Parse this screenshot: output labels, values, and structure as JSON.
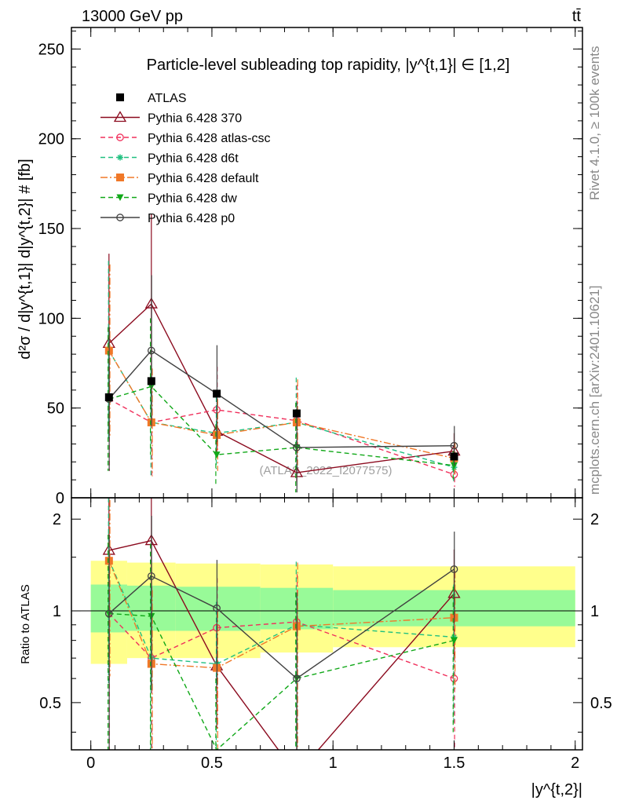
{
  "header": {
    "energy": "13000 GeV pp",
    "process": "tt̄"
  },
  "side_labels": {
    "rivet": "Rivet 4.1.0, ≥ 100k events",
    "source": "mcplots.cern.ch [arXiv:2401.10621]"
  },
  "watermark": "(ATLAS_2022_I2077575)",
  "chart_data": {
    "type": "line",
    "title": "Particle-level subleading top rapidity, |y^{t,1}| ∈ [1,2]",
    "xlabel": "|y^{t,2}|",
    "ylabel": "d²σ / d|y^{t,1}| d|y^{t,2}| # [fb]",
    "ratio_ylabel": "Ratio to ATLAS",
    "xlim": [
      -0.08,
      2.03
    ],
    "ylim": [
      0,
      262
    ],
    "ratio_ylim": [
      0.35,
      2.35
    ],
    "xticks": [
      0,
      0.5,
      1,
      1.5,
      2
    ],
    "xtick_labels": [
      "0",
      "0.5",
      "1",
      "1.5",
      "2"
    ],
    "yticks": [
      0,
      50,
      100,
      150,
      200,
      250
    ],
    "ytick_labels": [
      "0",
      "50",
      "100",
      "150",
      "200",
      "250"
    ],
    "ratio_yticks": [
      0.5,
      1,
      2
    ],
    "ratio_ytick_labels": [
      "0.5",
      "1",
      "2"
    ],
    "x": [
      0.075,
      0.25,
      0.52,
      0.85,
      1.5
    ],
    "bin_edges": [
      0,
      0.15,
      0.35,
      0.7,
      1.0,
      2.0
    ],
    "data": {
      "name": "ATLAS",
      "values": [
        56,
        65,
        58,
        47,
        23
      ]
    },
    "band_stat": {
      "lo": [
        0.85,
        0.86,
        0.86,
        0.87,
        0.89
      ],
      "hi": [
        1.22,
        1.21,
        1.2,
        1.19,
        1.17
      ]
    },
    "band_total": {
      "lo": [
        0.67,
        0.7,
        0.7,
        0.73,
        0.76
      ],
      "hi": [
        1.46,
        1.44,
        1.43,
        1.42,
        1.4
      ]
    },
    "series": [
      {
        "name": "Pythia 6.428 370",
        "color": "#8b0a1e",
        "dash": "solid",
        "marker": "triangle-open",
        "values": [
          86,
          108,
          37,
          14,
          26
        ],
        "err": [
          50,
          50,
          12,
          5,
          10
        ],
        "ratio": [
          1.58,
          1.7,
          0.66,
          0.29,
          1.14
        ],
        "ratio_err": [
          0.9,
          0.9,
          0.25,
          0.2,
          0.45
        ]
      },
      {
        "name": "Pythia 6.428 atlas-csc",
        "color": "#f0305c",
        "dash": "dash",
        "marker": "circle-open",
        "values": [
          55,
          42,
          49,
          43,
          13
        ],
        "err": [
          40,
          30,
          24,
          20,
          7
        ],
        "ratio": [
          0.98,
          0.7,
          0.88,
          0.92,
          0.6
        ],
        "ratio_err": [
          0.8,
          0.5,
          0.4,
          0.4,
          0.3
        ]
      },
      {
        "name": "Pythia 6.428 d6t",
        "color": "#20c080",
        "dash": "dash",
        "marker": "asterisk",
        "values": [
          82,
          42,
          36,
          42,
          17
        ],
        "err": [
          50,
          30,
          20,
          25,
          8
        ],
        "ratio": [
          1.47,
          0.7,
          0.67,
          0.9,
          0.82
        ],
        "ratio_err": [
          0.9,
          0.5,
          0.4,
          0.55,
          0.4
        ]
      },
      {
        "name": "Pythia 6.428 default",
        "color": "#f07828",
        "dash": "dashdot",
        "marker": "square",
        "values": [
          82,
          42,
          35,
          42,
          22
        ],
        "err": [
          48,
          30,
          20,
          24,
          9
        ],
        "ratio": [
          1.46,
          0.67,
          0.65,
          0.89,
          0.95
        ],
        "ratio_err": [
          0.85,
          0.5,
          0.35,
          0.55,
          0.4
        ]
      },
      {
        "name": "Pythia 6.428 dw",
        "color": "#10a818",
        "dash": "dash",
        "marker": "triangle-down",
        "values": [
          55,
          62,
          24,
          28,
          18
        ],
        "err": [
          40,
          38,
          17,
          25,
          8
        ],
        "ratio": [
          0.98,
          0.96,
          0.35,
          0.6,
          0.8
        ],
        "ratio_err": [
          0.8,
          0.7,
          0.25,
          0.55,
          0.4
        ]
      },
      {
        "name": "Pythia 6.428 p0",
        "color": "#404040",
        "dash": "solid",
        "marker": "circle-open",
        "values": [
          55,
          82,
          58,
          28,
          29
        ],
        "err": [
          40,
          42,
          27,
          25,
          11
        ],
        "ratio": [
          0.98,
          1.3,
          1.02,
          0.6,
          1.37
        ],
        "ratio_err": [
          0.8,
          0.75,
          0.45,
          0.55,
          0.45
        ]
      }
    ]
  }
}
